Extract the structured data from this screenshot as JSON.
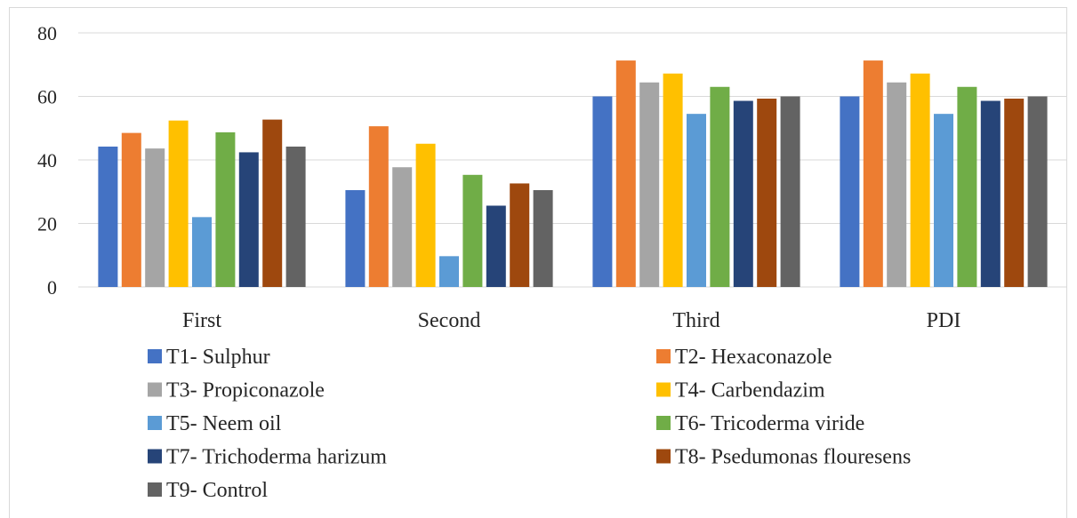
{
  "chart_data": {
    "type": "bar",
    "categories": [
      "First",
      "Second",
      "Third",
      "PDI"
    ],
    "series": [
      {
        "name": "T1- Sulphur",
        "color": "#4472c4",
        "values": [
          44.2,
          30.5,
          60.0,
          60.0
        ]
      },
      {
        "name": "T2- Hexaconazole",
        "color": "#ed7d31",
        "values": [
          48.5,
          50.6,
          71.3,
          71.3
        ]
      },
      {
        "name": "T3- Propiconazole",
        "color": "#a5a5a5",
        "values": [
          43.6,
          37.7,
          64.4,
          64.4
        ]
      },
      {
        "name": "T4- Carbendazim",
        "color": "#ffc000",
        "values": [
          52.4,
          45.1,
          67.2,
          67.2
        ]
      },
      {
        "name": "T5- Neem oil",
        "color": "#5b9bd5",
        "values": [
          22.0,
          9.7,
          54.5,
          54.5
        ]
      },
      {
        "name": "T6- Tricoderma viride",
        "color": "#70ad47",
        "values": [
          48.7,
          35.3,
          63.0,
          63.0
        ]
      },
      {
        "name": "T7- Trichoderma harizum",
        "color": "#264478",
        "values": [
          42.4,
          25.6,
          58.6,
          58.6
        ]
      },
      {
        "name": "T8- Psedumonas flouresens",
        "color": "#9e480e",
        "values": [
          52.7,
          32.6,
          59.3,
          59.3
        ]
      },
      {
        "name": "T9- Control",
        "color": "#636363",
        "values": [
          44.2,
          30.5,
          60.0,
          60.0
        ]
      }
    ],
    "yticks": [
      "0",
      "20",
      "40",
      "60",
      "80"
    ],
    "ylim": [
      0,
      80
    ],
    "grid": true,
    "legend": "bottom"
  }
}
